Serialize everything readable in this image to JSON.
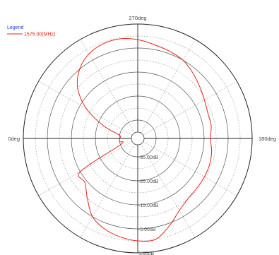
{
  "chart_data": {
    "type": "line",
    "subtype": "polar",
    "angle_unit": "deg",
    "radial_unit": "dB",
    "angle_tick_labels": {
      "top": "270deg",
      "left": "0deg",
      "right": "180deg"
    },
    "radial_ticks": [
      {
        "value": 5,
        "label": "5.00dB"
      },
      {
        "value": -5,
        "label": "-5.00dB"
      },
      {
        "value": -15,
        "label": "-15.00dB"
      },
      {
        "value": -25,
        "label": "-25.00dB"
      },
      {
        "value": -35,
        "label": "-35.00dB"
      }
    ],
    "rlim": [
      -40,
      5
    ],
    "grid": true,
    "legend": {
      "title": "Legend",
      "position": "top-left"
    },
    "series": [
      {
        "name": "1575.00(MHz)",
        "color": "#e8221b",
        "theta": [
          0,
          10,
          20,
          30,
          40,
          50,
          60,
          70,
          80,
          90,
          100,
          110,
          120,
          130,
          140,
          150,
          160,
          170,
          180,
          190,
          200,
          210,
          220,
          230,
          240,
          250,
          260,
          270,
          280,
          290,
          300,
          310,
          320,
          330,
          340,
          350
        ],
        "r": [
          -35,
          -35,
          -27.7,
          -18,
          -10,
          -5,
          -2,
          -0.7,
          -0.5,
          -1.5,
          -3,
          -4,
          -5,
          -7,
          -9,
          -10.6,
          -11.6,
          -11.6,
          -12.4,
          -11.4,
          -10.8,
          -10.6,
          -10.5,
          -10,
          -8,
          -4,
          0,
          0,
          -1,
          -2.5,
          -5,
          -10,
          -14,
          -15,
          -35,
          -35
        ]
      }
    ]
  }
}
